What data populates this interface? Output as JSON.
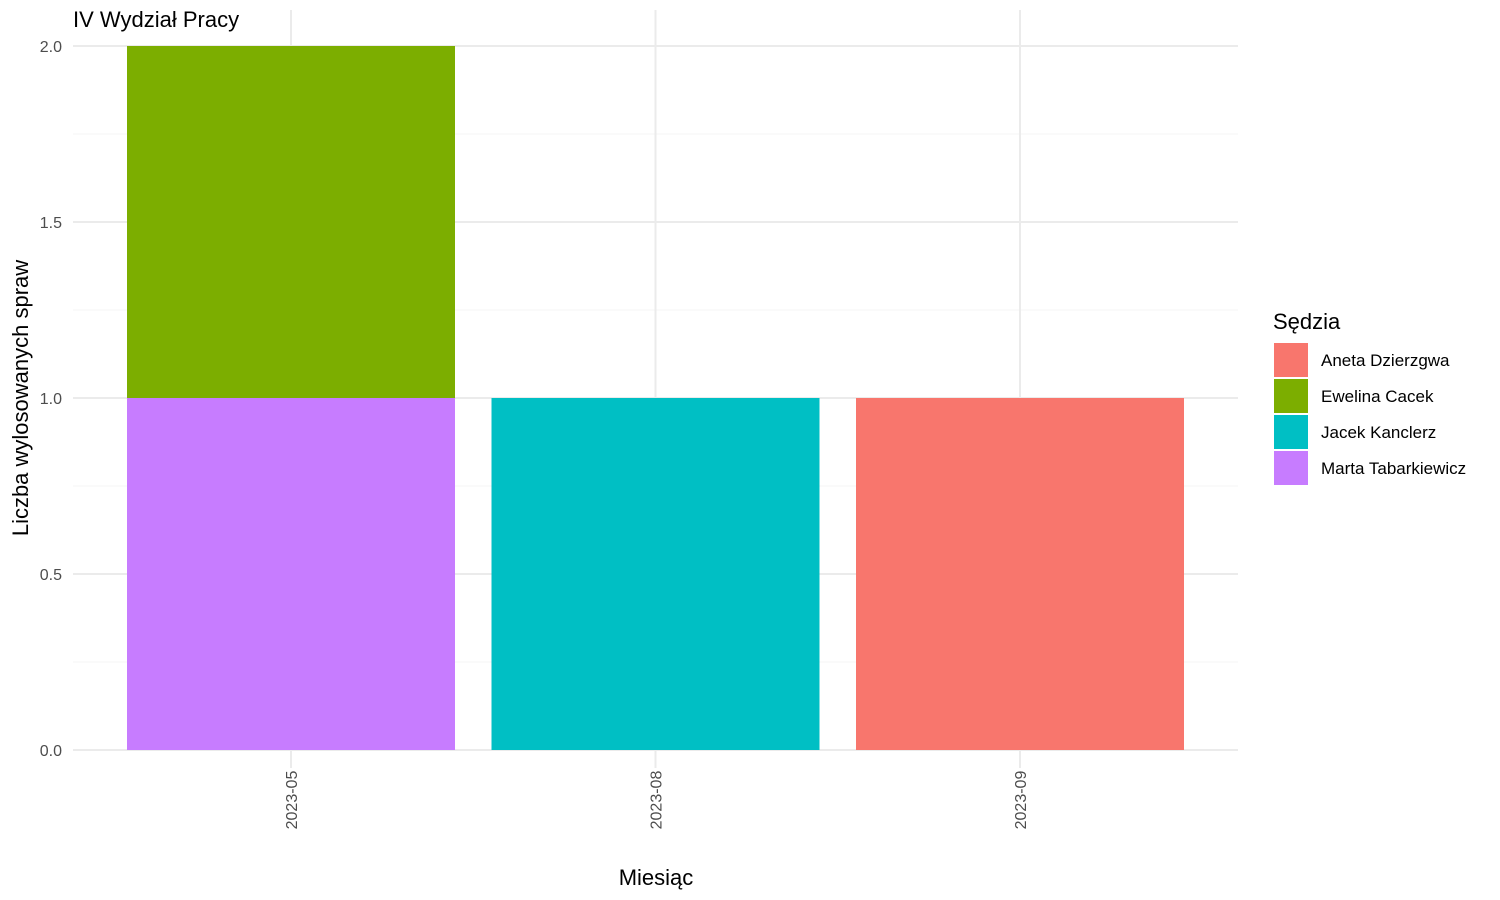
{
  "chart_data": {
    "type": "bar",
    "stacked": true,
    "title": "IV Wydział Pracy",
    "xlabel": "Miesiąc",
    "ylabel": "Liczba wylosowanych spraw",
    "categories": [
      "2023-05",
      "2023-08",
      "2023-09"
    ],
    "ylim": [
      0,
      2
    ],
    "yticks": [
      0.0,
      0.5,
      1.0,
      1.5,
      2.0
    ],
    "ytick_labels": [
      "0.0",
      "0.5",
      "1.0",
      "1.5",
      "2.0"
    ],
    "grid": true,
    "legend": {
      "title": "Sędzia",
      "placement": "right"
    },
    "series": [
      {
        "name": "Aneta Dzierzgwa",
        "color": "#F8766D",
        "values": [
          0,
          0,
          1
        ]
      },
      {
        "name": "Ewelina Cacek",
        "color": "#7CAE00",
        "values": [
          1,
          0,
          0
        ]
      },
      {
        "name": "Jacek Kanclerz",
        "color": "#00BFC4",
        "values": [
          0,
          1,
          0
        ]
      },
      {
        "name": "Marta Tabarkiewicz",
        "color": "#C77CFF",
        "values": [
          1,
          0,
          0
        ]
      }
    ],
    "stack_order_bottom_to_top": [
      "Marta Tabarkiewicz",
      "Jacek Kanclerz",
      "Ewelina Cacek",
      "Aneta Dzierzgwa"
    ]
  }
}
